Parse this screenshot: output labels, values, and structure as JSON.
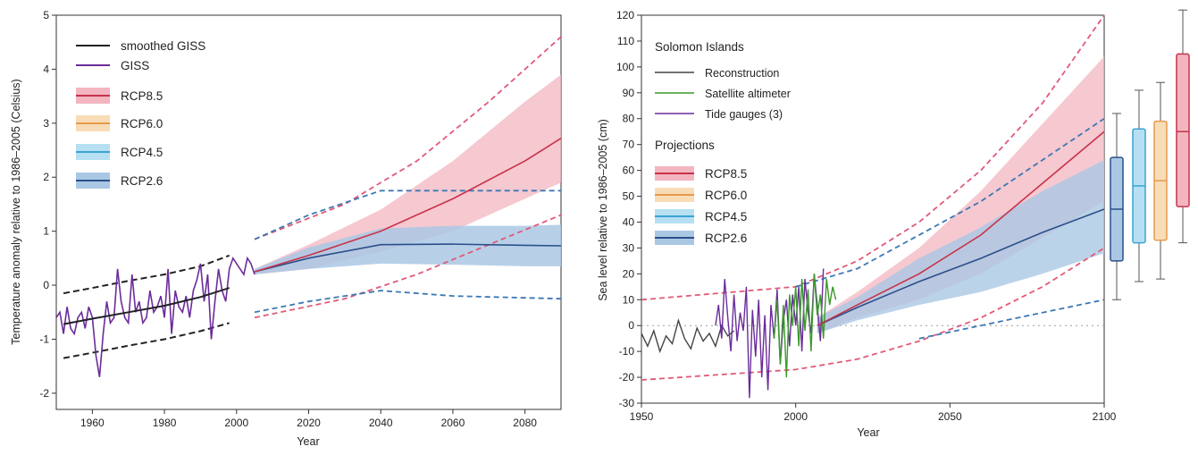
{
  "chart_data": [
    {
      "type": "line",
      "xlabel": "Year",
      "ylabel": "Temperature anomaly relative to 1986–2005 (Celsius)",
      "xlim": [
        1950,
        2090
      ],
      "ylim": [
        -2.3,
        5
      ],
      "x_ticks": [
        "1960",
        "1980",
        "2000",
        "2020",
        "2040",
        "2060",
        "2080"
      ],
      "y_ticks": [
        "-2",
        "-1",
        "0",
        "1",
        "2",
        "3",
        "4",
        "5"
      ],
      "legend_position": "top-left",
      "legend": [
        {
          "label": "smoothed GISS",
          "color": "#222222",
          "kind": "line"
        },
        {
          "label": "GISS",
          "color": "#6a2c9a",
          "kind": "line"
        },
        {
          "label": "RCP8.5",
          "color": "#c8324a",
          "fill": "#f3b6c0",
          "kind": "band"
        },
        {
          "label": "RCP6.0",
          "color": "#e89a4a",
          "fill": "#f8dcb8",
          "kind": "band"
        },
        {
          "label": "RCP4.5",
          "color": "#3aa4d4",
          "fill": "#b6e0f2",
          "kind": "band"
        },
        {
          "label": "RCP2.6",
          "color": "#2a4f8a",
          "fill": "#aac8e4",
          "kind": "band"
        }
      ],
      "observed": {
        "x": [
          1950,
          1951,
          1952,
          1953,
          1954,
          1955,
          1956,
          1957,
          1958,
          1959,
          1960,
          1961,
          1962,
          1963,
          1964,
          1965,
          1966,
          1967,
          1968,
          1969,
          1970,
          1971,
          1972,
          1973,
          1974,
          1975,
          1976,
          1977,
          1978,
          1979,
          1980,
          1981,
          1982,
          1983,
          1984,
          1985,
          1986,
          1987,
          1988,
          1989,
          1990,
          1991,
          1992,
          1993,
          1994,
          1995,
          1996,
          1997,
          1998,
          1999,
          2000,
          2001,
          2002,
          2003,
          2004,
          2005
        ],
        "y": [
          -0.6,
          -0.5,
          -0.9,
          -0.4,
          -0.8,
          -0.9,
          -0.6,
          -0.5,
          -0.8,
          -0.4,
          -0.6,
          -1.3,
          -1.7,
          -0.9,
          -0.3,
          -0.7,
          -0.6,
          0.3,
          -0.3,
          -0.6,
          -0.7,
          0.2,
          -0.5,
          -0.3,
          -0.7,
          -0.6,
          -0.1,
          -0.5,
          -0.4,
          -0.2,
          -0.6,
          0.3,
          -0.9,
          -0.1,
          -0.4,
          -0.5,
          -0.2,
          -0.6,
          -0.1,
          0.1,
          0.4,
          -0.3,
          0.2,
          -1.0,
          -0.3,
          0.3,
          -0.1,
          -0.3,
          0.3,
          0.5,
          0.4,
          0.3,
          0.2,
          0.5,
          0.4,
          0.2
        ]
      },
      "smoothed": {
        "x": [
          1952,
          1960,
          1970,
          1980,
          1990,
          1998
        ],
        "y": [
          -0.72,
          -0.62,
          -0.5,
          -0.38,
          -0.22,
          -0.05
        ]
      },
      "smoothed_bounds": {
        "upper": {
          "x": [
            1952,
            1960,
            1970,
            1980,
            1990,
            1998
          ],
          "y": [
            -0.15,
            -0.05,
            0.08,
            0.2,
            0.35,
            0.55
          ]
        },
        "lower": {
          "x": [
            1952,
            1960,
            1970,
            1980,
            1990,
            1998
          ],
          "y": [
            -1.35,
            -1.25,
            -1.12,
            -1.0,
            -0.85,
            -0.7
          ]
        }
      },
      "projections": [
        {
          "name": "RCP2.6",
          "color": "#2a4f8a",
          "fill": "#aac8e4",
          "x": [
            2005,
            2020,
            2040,
            2060,
            2080,
            2090
          ],
          "mean": [
            0.25,
            0.5,
            0.75,
            0.76,
            0.74,
            0.73
          ],
          "low": [
            0.2,
            0.3,
            0.4,
            0.38,
            0.35,
            0.35
          ],
          "high": [
            0.3,
            0.7,
            1.05,
            1.1,
            1.1,
            1.12
          ]
        },
        {
          "name": "RCP8.5",
          "color": "#c8324a",
          "fill": "#f3b6c0",
          "x": [
            2005,
            2020,
            2040,
            2060,
            2080,
            2090
          ],
          "mean": [
            0.25,
            0.55,
            1.0,
            1.6,
            2.3,
            2.72
          ],
          "low": [
            0.2,
            0.3,
            0.62,
            1.0,
            1.6,
            1.9
          ],
          "high": [
            0.3,
            0.75,
            1.4,
            2.3,
            3.4,
            3.9
          ]
        }
      ],
      "bounds_dashed": [
        {
          "color": "#e05a78",
          "x": [
            2005,
            2030,
            2050,
            2070,
            2090
          ],
          "y": [
            0.85,
            1.5,
            2.3,
            3.4,
            4.6
          ]
        },
        {
          "color": "#e05a78",
          "x": [
            2005,
            2030,
            2050,
            2070,
            2090
          ],
          "y": [
            -0.6,
            -0.25,
            0.2,
            0.75,
            1.3
          ]
        },
        {
          "color": "#3c78b4",
          "x": [
            2005,
            2020,
            2040,
            2060,
            2090
          ],
          "y": [
            0.85,
            1.3,
            1.75,
            1.75,
            1.75
          ]
        },
        {
          "color": "#3c78b4",
          "x": [
            2005,
            2020,
            2040,
            2060,
            2090
          ],
          "y": [
            -0.5,
            -0.3,
            -0.1,
            -0.2,
            -0.25
          ]
        }
      ]
    },
    {
      "type": "line",
      "title_legend": "Solomon Islands",
      "projections_heading": "Projections",
      "xlabel": "Year",
      "ylabel": "Sea level relative to 1986–2005 (cm)",
      "xlim": [
        1950,
        2100
      ],
      "ylim": [
        -30,
        120
      ],
      "x_ticks": [
        "1950",
        "2000",
        "2050",
        "2100"
      ],
      "y_ticks": [
        "-30",
        "-20",
        "-10",
        "0",
        "10",
        "20",
        "30",
        "40",
        "50",
        "60",
        "70",
        "80",
        "90",
        "100",
        "110",
        "120"
      ],
      "legend_position": "top-left",
      "legend": [
        {
          "label": "Reconstruction",
          "color": "#444444",
          "kind": "line"
        },
        {
          "label": "Satellite altimeter",
          "color": "#3a9a2a",
          "kind": "line"
        },
        {
          "label": "Tide gauges (3)",
          "color": "#6a2c9a",
          "kind": "line"
        },
        {
          "label": "RCP8.5",
          "color": "#c8324a",
          "fill": "#f3b6c0",
          "kind": "band"
        },
        {
          "label": "RCP6.0",
          "color": "#e89a4a",
          "fill": "#f8dcb8",
          "kind": "band"
        },
        {
          "label": "RCP4.5",
          "color": "#3aa4d4",
          "fill": "#b6e0f2",
          "kind": "band"
        },
        {
          "label": "RCP2.6",
          "color": "#2a4f8a",
          "fill": "#aac8e4",
          "kind": "band"
        }
      ],
      "reconstruction": {
        "x": [
          1950,
          1952,
          1954,
          1956,
          1958,
          1960,
          1962,
          1964,
          1966,
          1968,
          1970,
          1972,
          1974,
          1976,
          1978,
          1980
        ],
        "y": [
          -3,
          -8,
          -2,
          -10,
          -4,
          -7,
          2,
          -5,
          -9,
          -1,
          -6,
          -3,
          -8,
          0,
          -4,
          -2
        ]
      },
      "tide_gauges": {
        "x": [
          1974,
          1975,
          1976,
          1977,
          1978,
          1979,
          1980,
          1981,
          1982,
          1983,
          1984,
          1985,
          1986,
          1987,
          1988,
          1989,
          1990,
          1991,
          1992,
          1993,
          1994,
          1995,
          1996,
          1997,
          1998,
          1999,
          2000,
          2001,
          2002,
          2003,
          2004,
          2005,
          2006,
          2007,
          2008,
          2009
        ],
        "y": [
          0,
          8,
          -5,
          18,
          3,
          -10,
          12,
          -6,
          5,
          -2,
          15,
          -28,
          6,
          -12,
          10,
          -20,
          4,
          -25,
          8,
          -5,
          14,
          -15,
          2,
          10,
          -8,
          12,
          0,
          15,
          -10,
          18,
          5,
          -3,
          20,
          8,
          -6,
          22
        ]
      },
      "satellite": {
        "x": [
          1993,
          1994,
          1995,
          1996,
          1997,
          1998,
          1999,
          2000,
          2001,
          2002,
          2003,
          2004,
          2005,
          2006,
          2007,
          2008,
          2009,
          2010,
          2011,
          2012,
          2013
        ],
        "y": [
          -5,
          10,
          -15,
          8,
          -20,
          12,
          0,
          15,
          -8,
          18,
          -2,
          14,
          -10,
          20,
          4,
          12,
          -5,
          18,
          8,
          15,
          10
        ]
      },
      "projections": [
        {
          "name": "RCP2.6",
          "color": "#2a4f8a",
          "fill": "#aac8e4",
          "x": [
            2007,
            2020,
            2040,
            2060,
            2080,
            2100
          ],
          "mean": [
            0,
            7,
            17,
            26,
            36,
            45
          ],
          "low": [
            -3,
            2,
            8,
            13,
            20,
            28
          ],
          "high": [
            3,
            11,
            26,
            38,
            52,
            64
          ]
        },
        {
          "name": "RCP8.5",
          "color": "#c8324a",
          "fill": "#f3b6c0",
          "x": [
            2007,
            2020,
            2040,
            2060,
            2080,
            2100
          ],
          "mean": [
            0,
            8,
            20,
            35,
            55,
            75
          ],
          "low": [
            -3,
            3,
            10,
            20,
            34,
            48
          ],
          "high": [
            3,
            13,
            30,
            52,
            78,
            104
          ]
        }
      ],
      "bounds_dashed": [
        {
          "color": "#e05a78",
          "x": [
            1950,
            2000,
            2020,
            2040,
            2060,
            2080,
            2100
          ],
          "y": [
            10,
            15,
            25,
            40,
            60,
            86,
            120
          ]
        },
        {
          "color": "#e05a78",
          "x": [
            1950,
            2000,
            2020,
            2040,
            2060,
            2080,
            2100
          ],
          "y": [
            -21,
            -17,
            -13,
            -6,
            3,
            15,
            30
          ]
        },
        {
          "color": "#3c78b4",
          "x": [
            2000,
            2020,
            2040,
            2060,
            2080,
            2100
          ],
          "y": [
            15,
            22,
            35,
            48,
            64,
            80
          ]
        },
        {
          "color": "#3c78b4",
          "x": [
            2040,
            2060,
            2080,
            2100
          ],
          "y": [
            -5,
            0,
            5,
            10
          ]
        }
      ],
      "boxplots_2100": [
        {
          "name": "RCP2.6",
          "min": 10,
          "q1": 25,
          "median": 45,
          "q3": 65,
          "max": 82,
          "color": "#2a4f8a",
          "fill": "#aac8e4"
        },
        {
          "name": "RCP4.5",
          "min": 17,
          "q1": 32,
          "median": 54,
          "q3": 76,
          "max": 91,
          "color": "#3aa4d4",
          "fill": "#b6e0f2"
        },
        {
          "name": "RCP6.0",
          "min": 18,
          "q1": 33,
          "median": 56,
          "q3": 79,
          "max": 94,
          "color": "#e89a4a",
          "fill": "#f8dcb8"
        },
        {
          "name": "RCP8.5",
          "min": 32,
          "q1": 46,
          "median": 75,
          "q3": 105,
          "max": 122,
          "color": "#c8324a",
          "fill": "#f3b6c0"
        }
      ]
    }
  ]
}
